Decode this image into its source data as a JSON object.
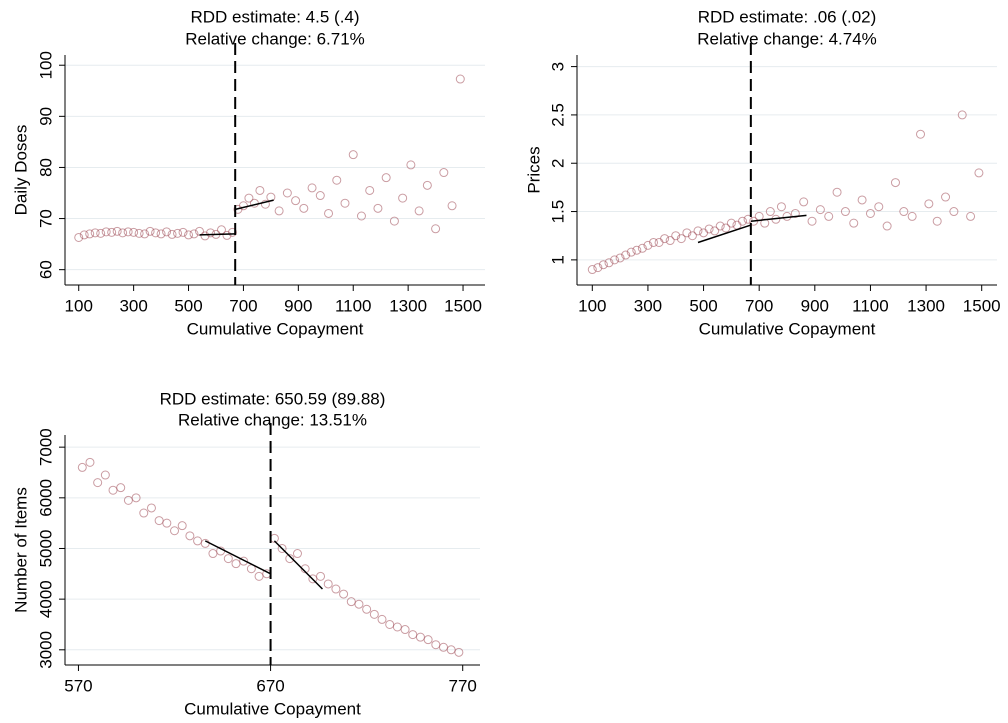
{
  "chart_data": [
    {
      "type": "scatter",
      "title": "RDD estimate: 4.5 (.4)",
      "subtitle": "Relative change: 6.71%",
      "xlabel": "Cumulative Copayment",
      "ylabel": "Daily Doses",
      "color": "#9e4a55",
      "grid": true,
      "cutoff": 670,
      "xlim": [
        50,
        1580
      ],
      "ylim": [
        57,
        102
      ],
      "xticks": [
        100,
        300,
        500,
        700,
        900,
        1100,
        1300,
        1500
      ],
      "yticks": [
        60,
        70,
        80,
        90,
        100
      ],
      "x": [
        100,
        120,
        140,
        160,
        180,
        200,
        220,
        240,
        260,
        280,
        300,
        320,
        340,
        360,
        380,
        400,
        420,
        440,
        460,
        480,
        500,
        520,
        540,
        560,
        580,
        600,
        620,
        640,
        660,
        680,
        700,
        720,
        740,
        760,
        780,
        800,
        830,
        860,
        890,
        920,
        950,
        980,
        1010,
        1040,
        1070,
        1100,
        1130,
        1160,
        1190,
        1220,
        1250,
        1280,
        1310,
        1340,
        1370,
        1400,
        1430,
        1460,
        1490
      ],
      "y": [
        66.3,
        66.8,
        67.0,
        67.2,
        67.1,
        67.4,
        67.3,
        67.5,
        67.2,
        67.4,
        67.3,
        67.1,
        67.0,
        67.5,
        67.2,
        67.0,
        67.4,
        66.9,
        67.1,
        67.3,
        66.8,
        67.0,
        67.5,
        66.6,
        67.2,
        66.9,
        67.8,
        66.7,
        67.3,
        71.8,
        72.5,
        74.0,
        73.0,
        75.5,
        72.8,
        74.2,
        71.5,
        75.0,
        73.5,
        72.0,
        76.0,
        74.5,
        71.0,
        77.5,
        73.0,
        82.5,
        70.5,
        75.5,
        72.0,
        78.0,
        69.5,
        74.0,
        80.5,
        71.5,
        76.5,
        68.0,
        79.0,
        72.5,
        97.3
      ],
      "fits": [
        {
          "x": [
            540,
            670
          ],
          "y": [
            66.8,
            67.0
          ]
        },
        {
          "x": [
            670,
            810
          ],
          "y": [
            71.8,
            73.6
          ]
        }
      ]
    },
    {
      "type": "scatter",
      "title": "RDD estimate: .06 (.02)",
      "subtitle": "Relative change: 4.74%",
      "xlabel": "Cumulative Copayment",
      "ylabel": "Prices",
      "color": "#9e4a55",
      "grid": true,
      "cutoff": 670,
      "xlim": [
        45,
        1555
      ],
      "ylim": [
        0.74,
        3.12
      ],
      "xticks": [
        100,
        300,
        500,
        700,
        900,
        1100,
        1300,
        1500
      ],
      "yticks": [
        1,
        1.5,
        2,
        2.5,
        3
      ],
      "x": [
        100,
        120,
        140,
        160,
        180,
        200,
        220,
        240,
        260,
        280,
        300,
        320,
        340,
        360,
        380,
        400,
        420,
        440,
        460,
        480,
        500,
        520,
        540,
        560,
        580,
        600,
        620,
        640,
        660,
        680,
        700,
        720,
        740,
        760,
        780,
        800,
        830,
        860,
        890,
        920,
        950,
        980,
        1010,
        1040,
        1070,
        1100,
        1130,
        1160,
        1190,
        1220,
        1250,
        1280,
        1310,
        1340,
        1370,
        1400,
        1430,
        1460,
        1490
      ],
      "y": [
        0.9,
        0.92,
        0.95,
        0.97,
        1.0,
        1.02,
        1.05,
        1.08,
        1.1,
        1.12,
        1.15,
        1.18,
        1.18,
        1.22,
        1.2,
        1.25,
        1.22,
        1.28,
        1.25,
        1.3,
        1.28,
        1.32,
        1.3,
        1.35,
        1.33,
        1.38,
        1.36,
        1.4,
        1.42,
        1.4,
        1.45,
        1.38,
        1.5,
        1.42,
        1.55,
        1.45,
        1.48,
        1.6,
        1.4,
        1.52,
        1.45,
        1.7,
        1.5,
        1.38,
        1.62,
        1.48,
        1.55,
        1.35,
        1.8,
        1.5,
        1.45,
        2.3,
        1.58,
        1.4,
        1.65,
        1.5,
        2.5,
        1.45,
        1.9
      ],
      "fits": [
        {
          "x": [
            480,
            670
          ],
          "y": [
            1.18,
            1.36
          ]
        },
        {
          "x": [
            670,
            870
          ],
          "y": [
            1.4,
            1.46
          ]
        }
      ]
    },
    {
      "type": "scatter",
      "title": "RDD estimate: 650.59 (89.88)",
      "subtitle": "Relative change: 13.51%",
      "xlabel": "Cumulative Copayment",
      "ylabel": "Number of Items",
      "color": "#9e4a55",
      "grid": true,
      "cutoff": 670,
      "xlim": [
        563,
        779
      ],
      "ylim": [
        2700,
        7240
      ],
      "xticks": [
        570,
        670,
        770
      ],
      "yticks": [
        3000,
        4000,
        5000,
        6000,
        7000
      ],
      "x": [
        572,
        576,
        580,
        584,
        588,
        592,
        596,
        600,
        604,
        608,
        612,
        616,
        620,
        624,
        628,
        632,
        636,
        640,
        644,
        648,
        652,
        656,
        660,
        664,
        668,
        672,
        676,
        680,
        684,
        688,
        692,
        696,
        700,
        704,
        708,
        712,
        716,
        720,
        724,
        728,
        732,
        736,
        740,
        744,
        748,
        752,
        756,
        760,
        764,
        768
      ],
      "y": [
        6600,
        6700,
        6300,
        6450,
        6150,
        6200,
        5950,
        6000,
        5700,
        5800,
        5550,
        5500,
        5350,
        5450,
        5250,
        5150,
        5100,
        4900,
        4950,
        4800,
        4700,
        4750,
        4600,
        4450,
        4500,
        5200,
        5000,
        4800,
        4900,
        4600,
        4400,
        4450,
        4300,
        4200,
        4100,
        3950,
        3900,
        3800,
        3700,
        3600,
        3500,
        3450,
        3400,
        3300,
        3250,
        3200,
        3100,
        3050,
        3000,
        2950
      ],
      "fits": [
        {
          "x": [
            636,
            670
          ],
          "y": [
            5150,
            4500
          ]
        },
        {
          "x": [
            672,
            697
          ],
          "y": [
            5150,
            4200
          ]
        }
      ]
    }
  ]
}
